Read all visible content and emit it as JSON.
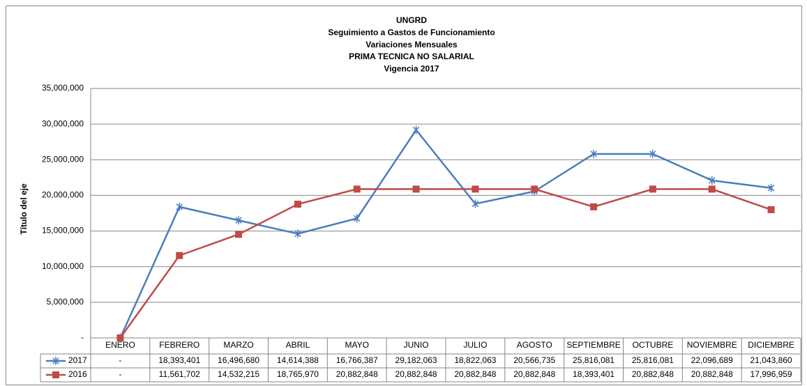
{
  "chart_data": {
    "type": "line",
    "title_lines": [
      "UNGRD",
      "Seguimiento a Gastos de Funcionamiento",
      "Variaciones Mensuales",
      "PRIMA TECNICA NO SALARIAL",
      "Vigencia 2017"
    ],
    "y_label": "Título del eje",
    "categories": [
      "ENERO",
      "FEBRERO",
      "MARZO",
      "ABRIL",
      "MAYO",
      "JUNIO",
      "JULIO",
      "AGOSTO",
      "SEPTIEMBRE",
      "OCTUBRE",
      "NOVIEMBRE",
      "DICIEMBRE"
    ],
    "series": [
      {
        "name": "2017",
        "color": "#4a7ebb",
        "marker": "star",
        "values": [
          0,
          18393401,
          16496680,
          14614388,
          16766387,
          29182063,
          18822063,
          20566735,
          25816081,
          25816081,
          22096689,
          21043860
        ],
        "value_labels": [
          "-",
          "18,393,401",
          "16,496,680",
          "14,614,388",
          "16,766,387",
          "29,182,063",
          "18,822,063",
          "20,566,735",
          "25,816,081",
          "25,816,081",
          "22,096,689",
          "21,043,860"
        ]
      },
      {
        "name": "2016",
        "color": "#be4b48",
        "marker": "square",
        "values": [
          0,
          11561702,
          14532215,
          18765970,
          20882848,
          20882848,
          20882848,
          20882848,
          18393401,
          20882848,
          20882848,
          17996959
        ],
        "value_labels": [
          "-",
          "11,561,702",
          "14,532,215",
          "18,765,970",
          "20,882,848",
          "20,882,848",
          "20,882,848",
          "20,882,848",
          "18,393,401",
          "20,882,848",
          "20,882,848",
          "17,996,959"
        ]
      }
    ],
    "ylim": [
      0,
      35000000
    ],
    "yticks": [
      {
        "value": 0,
        "label": "-"
      },
      {
        "value": 5000000,
        "label": "5,000,000"
      },
      {
        "value": 10000000,
        "label": "10,000,000"
      },
      {
        "value": 15000000,
        "label": "15,000,000"
      },
      {
        "value": 20000000,
        "label": "20,000,000"
      },
      {
        "value": 25000000,
        "label": "25,000,000"
      },
      {
        "value": 30000000,
        "label": "30,000,000"
      },
      {
        "value": 35000000,
        "label": "35,000,000"
      }
    ],
    "grid": true
  }
}
